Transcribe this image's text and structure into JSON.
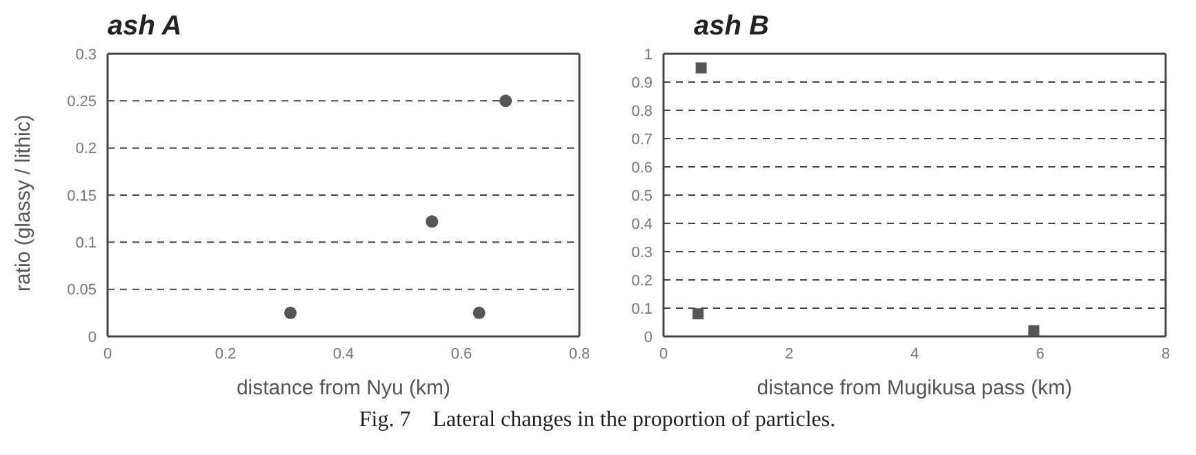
{
  "chart_data": [
    {
      "type": "scatter",
      "title": "ash A",
      "xlabel": "distance from Nyu (km)",
      "ylabel": "ratio (glassy / lithic)",
      "xlim": [
        0,
        0.8
      ],
      "xticks": [
        0,
        0.2,
        0.4,
        0.6,
        0.8
      ],
      "ylim": [
        0,
        0.3
      ],
      "yticks": [
        0,
        0.05,
        0.1,
        0.15,
        0.2,
        0.25,
        0.3
      ],
      "grid": "y",
      "marker": "circle",
      "series": [
        {
          "color": "#555555",
          "x": [
            0.31,
            0.55,
            0.63,
            0.675
          ],
          "values": [
            0.025,
            0.122,
            0.025,
            0.25
          ]
        }
      ],
      "annotations": [
        "Fig. 7　Lateral changes in the proportion of particles."
      ]
    },
    {
      "type": "scatter",
      "title": "ash B",
      "xlabel": "distance from Mugikusa pass (km)",
      "xlim": [
        0,
        8
      ],
      "xticks": [
        0,
        2,
        4,
        6,
        8
      ],
      "ylim": [
        0,
        1
      ],
      "yticks": [
        0,
        0.1,
        0.2,
        0.3,
        0.4,
        0.5,
        0.6,
        0.7,
        0.8,
        0.9,
        1
      ],
      "grid": "y",
      "marker": "square",
      "series": [
        {
          "color": "#555555",
          "x": [
            0.6,
            0.55,
            5.9
          ],
          "values": [
            0.95,
            0.08,
            0.02
          ]
        }
      ]
    }
  ]
}
